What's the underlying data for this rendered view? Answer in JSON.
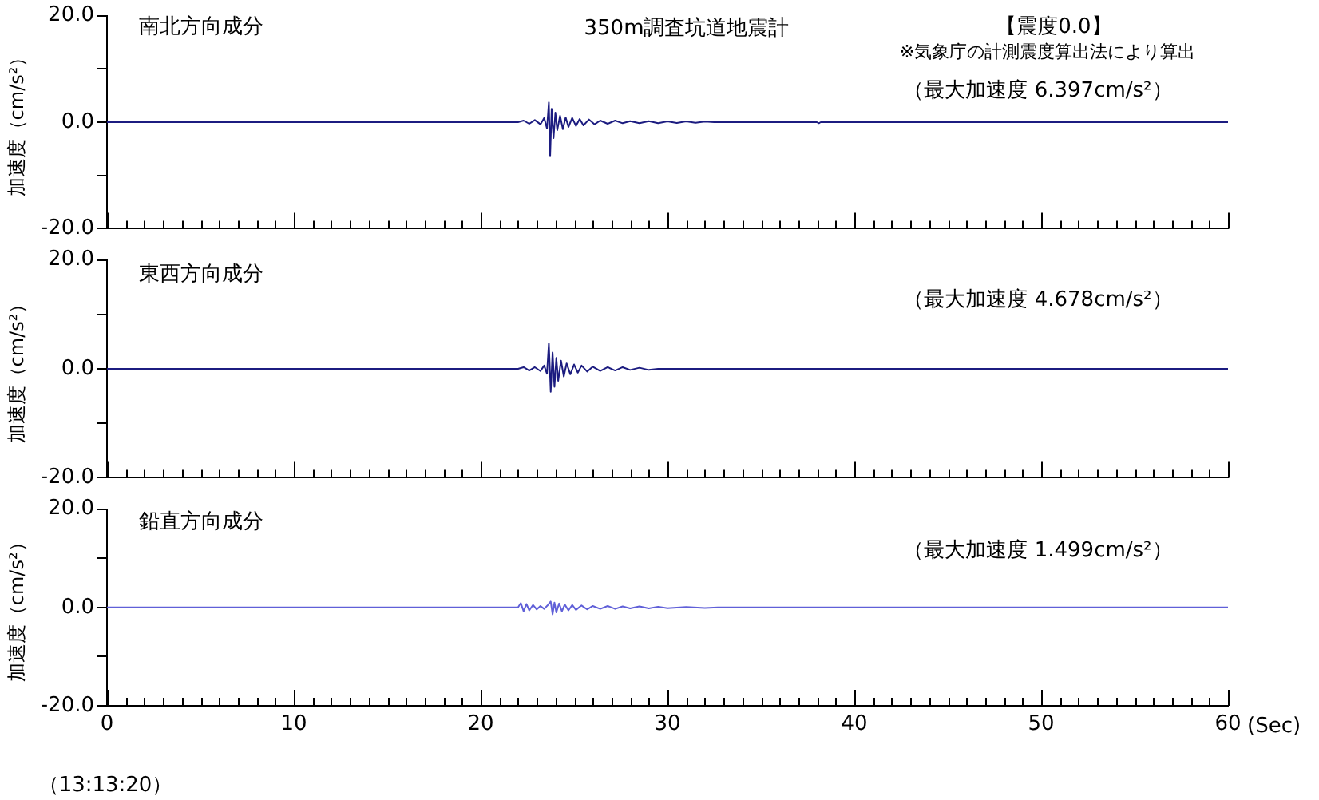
{
  "chart_data": [
    {
      "type": "line",
      "title": "南北方向成分",
      "ylabel": "加速度（cm/s²）",
      "annotations": [
        "350m調査坑道地震計",
        "【震度0.0】",
        "※気象庁の計測震度算出法により算出",
        "（最大加速度 6.397cm/s²）"
      ],
      "series": [
        {
          "color": "#1c1c80",
          "x": [
            0,
            22.0,
            22.3,
            22.6,
            22.9,
            23.2,
            23.4,
            23.55,
            23.65,
            23.72,
            23.8,
            23.9,
            24.0,
            24.1,
            24.25,
            24.4,
            24.55,
            24.7,
            24.9,
            25.1,
            25.3,
            25.5,
            25.8,
            26.1,
            26.4,
            26.8,
            27.2,
            27.6,
            28.0,
            28.5,
            29.0,
            29.5,
            30.0,
            30.5,
            31.0,
            31.5,
            32.0,
            32.5,
            38.0,
            38.1,
            38.2,
            60
          ],
          "values": [
            0,
            0,
            0.3,
            -0.3,
            0.4,
            -0.4,
            0.8,
            -1.2,
            3.7,
            -6.4,
            2.5,
            -3.0,
            1.8,
            -1.5,
            1.2,
            -1.3,
            0.9,
            -0.9,
            0.8,
            -0.7,
            0.6,
            -0.6,
            0.5,
            -0.4,
            0.3,
            -0.3,
            0.3,
            -0.2,
            0.2,
            -0.2,
            0.2,
            -0.2,
            0.15,
            -0.15,
            0.15,
            -0.1,
            0.1,
            0,
            0,
            -0.2,
            0,
            0
          ]
        }
      ],
      "xlim": [
        0,
        60
      ],
      "xticks": [
        0,
        {
          "value": 1,
          "label": null
        },
        {
          "value": 2,
          "label": null
        },
        {
          "value": 3,
          "label": null
        },
        {
          "value": 4,
          "label": null
        },
        {
          "value": 5,
          "label": null
        },
        {
          "value": 6,
          "label": null
        },
        {
          "value": 7,
          "label": null
        },
        {
          "value": 8,
          "label": null
        },
        {
          "value": 9,
          "label": null
        },
        10,
        {
          "value": 11,
          "label": null
        },
        {
          "value": 12,
          "label": null
        },
        {
          "value": 13,
          "label": null
        },
        {
          "value": 14,
          "label": null
        },
        {
          "value": 15,
          "label": null
        },
        {
          "value": 16,
          "label": null
        },
        {
          "value": 17,
          "label": null
        },
        {
          "value": 18,
          "label": null
        },
        {
          "value": 19,
          "label": null
        },
        20,
        {
          "value": 21,
          "label": null
        },
        {
          "value": 22,
          "label": null
        },
        {
          "value": 23,
          "label": null
        },
        {
          "value": 24,
          "label": null
        },
        {
          "value": 25,
          "label": null
        },
        {
          "value": 26,
          "label": null
        },
        {
          "value": 27,
          "label": null
        },
        {
          "value": 28,
          "label": null
        },
        {
          "value": 29,
          "label": null
        },
        30,
        {
          "value": 31,
          "label": null
        },
        {
          "value": 32,
          "label": null
        },
        {
          "value": 33,
          "label": null
        },
        {
          "value": 34,
          "label": null
        },
        {
          "value": 35,
          "label": null
        },
        {
          "value": 36,
          "label": null
        },
        {
          "value": 37,
          "label": null
        },
        {
          "value": 38,
          "label": null
        },
        {
          "value": 39,
          "label": null
        },
        40,
        {
          "value": 41,
          "label": null
        },
        {
          "value": 42,
          "label": null
        },
        {
          "value": 43,
          "label": null
        },
        {
          "value": 44,
          "label": null
        },
        {
          "value": 45,
          "label": null
        },
        {
          "value": 46,
          "label": null
        },
        {
          "value": 47,
          "label": null
        },
        {
          "value": 48,
          "label": null
        },
        {
          "value": 49,
          "label": null
        },
        50,
        {
          "value": 51,
          "label": null
        },
        {
          "value": 52,
          "label": null
        },
        {
          "value": 53,
          "label": null
        },
        {
          "value": 54,
          "label": null
        },
        {
          "value": 55,
          "label": null
        },
        {
          "value": 56,
          "label": null
        },
        {
          "value": 57,
          "label": null
        },
        {
          "value": 58,
          "label": null
        },
        {
          "value": 59,
          "label": null
        },
        60
      ],
      "ylim": [
        -20,
        20
      ],
      "yticks": [
        {
          "value": -20,
          "label": "-20.0"
        },
        {
          "value": -10,
          "label": null
        },
        {
          "value": 0,
          "label": "0.0"
        },
        {
          "value": 10,
          "label": null
        },
        {
          "value": 20,
          "label": "20.0"
        }
      ],
      "tick_labels": "y",
      "grid": false,
      "legend": false
    },
    {
      "type": "line",
      "title": "東西方向成分",
      "ylabel": "加速度（cm/s²）",
      "annotations": [
        "（最大加速度 4.678cm/s²）"
      ],
      "series": [
        {
          "color": "#1c1c80",
          "x": [
            0,
            22.0,
            22.3,
            22.6,
            22.9,
            23.2,
            23.4,
            23.55,
            23.65,
            23.75,
            23.85,
            23.95,
            24.05,
            24.15,
            24.3,
            24.45,
            24.6,
            24.8,
            25.0,
            25.2,
            25.4,
            25.7,
            26.0,
            26.4,
            26.8,
            27.2,
            27.6,
            28.0,
            28.5,
            29.0,
            29.5,
            60
          ],
          "values": [
            0,
            0,
            0.3,
            -0.3,
            0.3,
            -0.4,
            0.6,
            -0.9,
            4.7,
            -4.2,
            3.0,
            -3.3,
            2.0,
            -2.2,
            1.5,
            -1.4,
            1.0,
            -1.0,
            0.8,
            -0.7,
            0.6,
            -0.5,
            0.4,
            -0.4,
            0.3,
            -0.3,
            0.3,
            -0.2,
            0.2,
            -0.2,
            0,
            0
          ]
        }
      ],
      "xlim": [
        0,
        60
      ],
      "xticks": [
        0,
        {
          "value": 1,
          "label": null
        },
        {
          "value": 2,
          "label": null
        },
        {
          "value": 3,
          "label": null
        },
        {
          "value": 4,
          "label": null
        },
        {
          "value": 5,
          "label": null
        },
        {
          "value": 6,
          "label": null
        },
        {
          "value": 7,
          "label": null
        },
        {
          "value": 8,
          "label": null
        },
        {
          "value": 9,
          "label": null
        },
        10,
        {
          "value": 11,
          "label": null
        },
        {
          "value": 12,
          "label": null
        },
        {
          "value": 13,
          "label": null
        },
        {
          "value": 14,
          "label": null
        },
        {
          "value": 15,
          "label": null
        },
        {
          "value": 16,
          "label": null
        },
        {
          "value": 17,
          "label": null
        },
        {
          "value": 18,
          "label": null
        },
        {
          "value": 19,
          "label": null
        },
        20,
        {
          "value": 21,
          "label": null
        },
        {
          "value": 22,
          "label": null
        },
        {
          "value": 23,
          "label": null
        },
        {
          "value": 24,
          "label": null
        },
        {
          "value": 25,
          "label": null
        },
        {
          "value": 26,
          "label": null
        },
        {
          "value": 27,
          "label": null
        },
        {
          "value": 28,
          "label": null
        },
        {
          "value": 29,
          "label": null
        },
        30,
        {
          "value": 31,
          "label": null
        },
        {
          "value": 32,
          "label": null
        },
        {
          "value": 33,
          "label": null
        },
        {
          "value": 34,
          "label": null
        },
        {
          "value": 35,
          "label": null
        },
        {
          "value": 36,
          "label": null
        },
        {
          "value": 37,
          "label": null
        },
        {
          "value": 38,
          "label": null
        },
        {
          "value": 39,
          "label": null
        },
        40,
        {
          "value": 41,
          "label": null
        },
        {
          "value": 42,
          "label": null
        },
        {
          "value": 43,
          "label": null
        },
        {
          "value": 44,
          "label": null
        },
        {
          "value": 45,
          "label": null
        },
        {
          "value": 46,
          "label": null
        },
        {
          "value": 47,
          "label": null
        },
        {
          "value": 48,
          "label": null
        },
        {
          "value": 49,
          "label": null
        },
        50,
        {
          "value": 51,
          "label": null
        },
        {
          "value": 52,
          "label": null
        },
        {
          "value": 53,
          "label": null
        },
        {
          "value": 54,
          "label": null
        },
        {
          "value": 55,
          "label": null
        },
        {
          "value": 56,
          "label": null
        },
        {
          "value": 57,
          "label": null
        },
        {
          "value": 58,
          "label": null
        },
        {
          "value": 59,
          "label": null
        },
        60
      ],
      "ylim": [
        -20,
        20
      ],
      "yticks": [
        {
          "value": -20,
          "label": "-20.0"
        },
        {
          "value": -10,
          "label": null
        },
        {
          "value": 0,
          "label": "0.0"
        },
        {
          "value": 10,
          "label": null
        },
        {
          "value": 20,
          "label": "20.0"
        }
      ],
      "tick_labels": "y",
      "grid": false,
      "legend": false
    },
    {
      "type": "line",
      "title": "鉛直方向成分",
      "ylabel": "加速度（cm/s²）",
      "xlabel": "(Sec)",
      "annotations": [
        "（最大加速度 1.499cm/s²）",
        "（13:13:20）"
      ],
      "series": [
        {
          "color": "#6060d8",
          "x": [
            0,
            22.0,
            22.15,
            22.3,
            22.45,
            22.6,
            22.8,
            23.0,
            23.2,
            23.4,
            23.6,
            23.75,
            23.85,
            23.95,
            24.05,
            24.2,
            24.35,
            24.5,
            24.7,
            24.9,
            25.1,
            25.4,
            25.7,
            26.0,
            26.4,
            26.8,
            27.2,
            27.6,
            28.0,
            28.5,
            29.0,
            29.5,
            30.0,
            31.0,
            32.0,
            32.7,
            60
          ],
          "values": [
            0,
            0,
            0.9,
            -0.8,
            0.7,
            -0.6,
            0.5,
            -0.4,
            0.3,
            -0.3,
            0.5,
            1.2,
            -1.4,
            1.0,
            -1.0,
            0.8,
            -0.8,
            0.6,
            -0.6,
            0.5,
            -0.5,
            0.4,
            -0.4,
            0.3,
            -0.3,
            0.3,
            -0.3,
            0.2,
            -0.2,
            0.2,
            -0.2,
            0.15,
            -0.15,
            0.1,
            -0.1,
            0,
            0
          ]
        }
      ],
      "xlim": [
        0,
        60
      ],
      "xticks": [
        0,
        {
          "value": 1,
          "label": null
        },
        {
          "value": 2,
          "label": null
        },
        {
          "value": 3,
          "label": null
        },
        {
          "value": 4,
          "label": null
        },
        {
          "value": 5,
          "label": null
        },
        {
          "value": 6,
          "label": null
        },
        {
          "value": 7,
          "label": null
        },
        {
          "value": 8,
          "label": null
        },
        {
          "value": 9,
          "label": null
        },
        10,
        {
          "value": 11,
          "label": null
        },
        {
          "value": 12,
          "label": null
        },
        {
          "value": 13,
          "label": null
        },
        {
          "value": 14,
          "label": null
        },
        {
          "value": 15,
          "label": null
        },
        {
          "value": 16,
          "label": null
        },
        {
          "value": 17,
          "label": null
        },
        {
          "value": 18,
          "label": null
        },
        {
          "value": 19,
          "label": null
        },
        20,
        {
          "value": 21,
          "label": null
        },
        {
          "value": 22,
          "label": null
        },
        {
          "value": 23,
          "label": null
        },
        {
          "value": 24,
          "label": null
        },
        {
          "value": 25,
          "label": null
        },
        {
          "value": 26,
          "label": null
        },
        {
          "value": 27,
          "label": null
        },
        {
          "value": 28,
          "label": null
        },
        {
          "value": 29,
          "label": null
        },
        30,
        {
          "value": 31,
          "label": null
        },
        {
          "value": 32,
          "label": null
        },
        {
          "value": 33,
          "label": null
        },
        {
          "value": 34,
          "label": null
        },
        {
          "value": 35,
          "label": null
        },
        {
          "value": 36,
          "label": null
        },
        {
          "value": 37,
          "label": null
        },
        {
          "value": 38,
          "label": null
        },
        {
          "value": 39,
          "label": null
        },
        40,
        {
          "value": 41,
          "label": null
        },
        {
          "value": 42,
          "label": null
        },
        {
          "value": 43,
          "label": null
        },
        {
          "value": 44,
          "label": null
        },
        {
          "value": 45,
          "label": null
        },
        {
          "value": 46,
          "label": null
        },
        {
          "value": 47,
          "label": null
        },
        {
          "value": 48,
          "label": null
        },
        {
          "value": 49,
          "label": null
        },
        50,
        {
          "value": 51,
          "label": null
        },
        {
          "value": 52,
          "label": null
        },
        {
          "value": 53,
          "label": null
        },
        {
          "value": 54,
          "label": null
        },
        {
          "value": 55,
          "label": null
        },
        {
          "value": 56,
          "label": null
        },
        {
          "value": 57,
          "label": null
        },
        {
          "value": 58,
          "label": null
        },
        {
          "value": 59,
          "label": null
        },
        60
      ],
      "ylim": [
        -20,
        20
      ],
      "yticks": [
        {
          "value": -20,
          "label": "-20.0"
        },
        {
          "value": -10,
          "label": null
        },
        {
          "value": 0,
          "label": "0.0"
        },
        {
          "value": 10,
          "label": null
        },
        {
          "value": 20,
          "label": "20.0"
        }
      ],
      "grid": false,
      "legend": false
    }
  ]
}
